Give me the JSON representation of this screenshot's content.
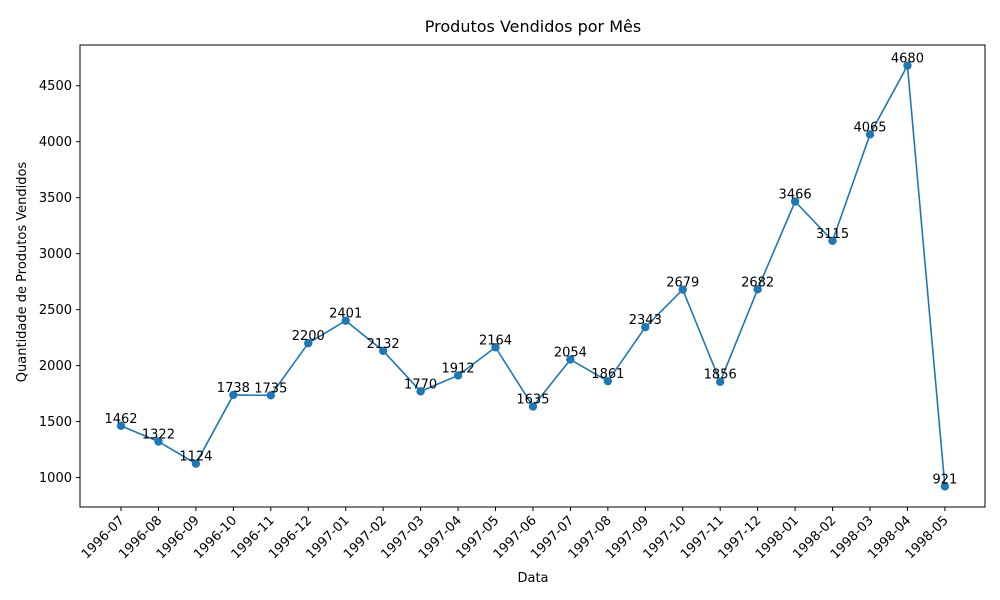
{
  "chart_data": {
    "type": "line",
    "title": "Produtos Vendidos por Mês",
    "xlabel": "Data",
    "ylabel": "Quantidade de Produtos Vendidos",
    "categories": [
      "1996-07",
      "1996-08",
      "1996-09",
      "1996-10",
      "1996-11",
      "1996-12",
      "1997-01",
      "1997-02",
      "1997-03",
      "1997-04",
      "1997-05",
      "1997-06",
      "1997-07",
      "1997-08",
      "1997-09",
      "1997-10",
      "1997-11",
      "1997-12",
      "1998-01",
      "1998-02",
      "1998-03",
      "1998-04",
      "1998-05"
    ],
    "series": [
      {
        "values": [
          1462,
          1322,
          1124,
          1738,
          1735,
          2200,
          2401,
          2132,
          1770,
          1912,
          2164,
          1635,
          2054,
          1861,
          2343,
          2679,
          1856,
          2682,
          3466,
          3115,
          4065,
          4680,
          921
        ],
        "color": "#1f77b4",
        "marker": "circle"
      }
    ],
    "y_ticks": [
      1000,
      1500,
      2000,
      2500,
      3000,
      3500,
      4000,
      4500
    ],
    "ylim": [
      737,
      4864
    ],
    "grid": false,
    "data_labels": true
  }
}
